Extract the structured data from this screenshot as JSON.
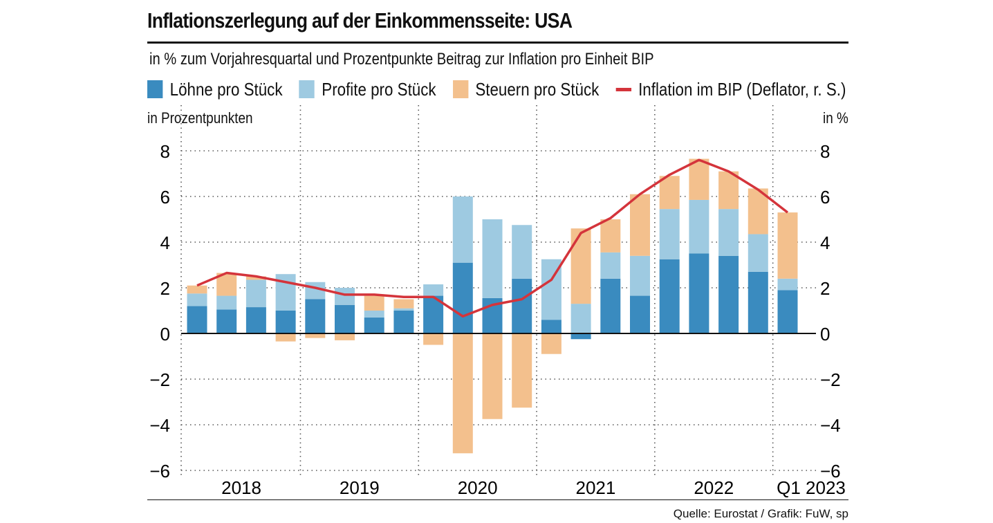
{
  "header": {
    "title": "Inflationszerlegung auf der Einkommensseite: USA",
    "subtitle": "in % zum Vorjahresquartal und Prozentpunkte Beitrag zur Inflation pro Einheit BIP"
  },
  "axis_units": {
    "left": "in Prozentpunkten",
    "right": "in %"
  },
  "source": "Quelle: Eurostat / Grafik: FuW, sp",
  "colors": {
    "loehne": "#3a8bbf",
    "profite": "#9ecae1",
    "steuern": "#f3c08d",
    "inflation": "#d4343b"
  },
  "chart_data": {
    "type": "bar",
    "stacked": true,
    "ylim": [
      -6,
      8
    ],
    "yticks": [
      8,
      6,
      4,
      2,
      0,
      -2,
      -4,
      -6
    ],
    "ytick_labels": [
      "8",
      "6",
      "4",
      "2",
      "0",
      "−2",
      "−4",
      "−6"
    ],
    "grid": true,
    "year_labels": [
      "2018",
      "2019",
      "2020",
      "2021",
      "2022",
      "Q1 2023"
    ],
    "year_quarter_counts": [
      4,
      4,
      4,
      4,
      4,
      1
    ],
    "legend": [
      {
        "key": "loehne",
        "label": "Löhne pro Stück",
        "kind": "bar"
      },
      {
        "key": "profite",
        "label": "Profite pro Stück",
        "kind": "bar"
      },
      {
        "key": "steuern",
        "label": "Steuern pro Stück",
        "kind": "bar"
      },
      {
        "key": "inflation",
        "label": "Inflation im BIP (Deflator, r. S.)",
        "kind": "line"
      }
    ],
    "categories": [
      "Q1 2018",
      "Q2 2018",
      "Q3 2018",
      "Q4 2018",
      "Q1 2019",
      "Q2 2019",
      "Q3 2019",
      "Q4 2019",
      "Q1 2020",
      "Q2 2020",
      "Q3 2020",
      "Q4 2020",
      "Q1 2021",
      "Q2 2021",
      "Q3 2021",
      "Q4 2021",
      "Q1 2022",
      "Q2 2022",
      "Q3 2022",
      "Q4 2022",
      "Q1 2023"
    ],
    "series": [
      {
        "name": "Löhne pro Stück",
        "key": "loehne",
        "values": [
          1.2,
          1.05,
          1.15,
          1.0,
          1.5,
          1.25,
          0.7,
          1.0,
          1.65,
          3.1,
          1.55,
          2.4,
          0.6,
          -0.25,
          2.4,
          1.65,
          3.25,
          3.5,
          3.4,
          2.7,
          1.9
        ]
      },
      {
        "name": "Profite pro Stück",
        "key": "profite",
        "values": [
          0.55,
          0.6,
          1.2,
          1.6,
          0.75,
          0.75,
          0.3,
          0.1,
          0.5,
          2.9,
          3.45,
          2.35,
          2.65,
          1.3,
          1.15,
          1.75,
          2.2,
          2.35,
          2.05,
          1.65,
          0.5
        ]
      },
      {
        "name": "Steuern pro Stück",
        "key": "steuern",
        "values": [
          0.35,
          1.0,
          0.15,
          -0.35,
          -0.2,
          -0.3,
          0.65,
          0.4,
          -0.5,
          -5.25,
          -3.75,
          -3.25,
          -0.9,
          3.3,
          1.45,
          2.7,
          1.45,
          1.8,
          1.65,
          2.0,
          2.9
        ]
      },
      {
        "name": "Inflation im BIP (Deflator, r. S.)",
        "key": "inflation",
        "type": "line",
        "values": [
          2.1,
          2.65,
          2.5,
          2.25,
          2.0,
          1.7,
          1.7,
          1.6,
          1.6,
          0.75,
          1.25,
          1.5,
          2.35,
          4.4,
          5.05,
          6.1,
          6.95,
          7.6,
          7.1,
          6.3,
          5.3
        ]
      }
    ]
  }
}
